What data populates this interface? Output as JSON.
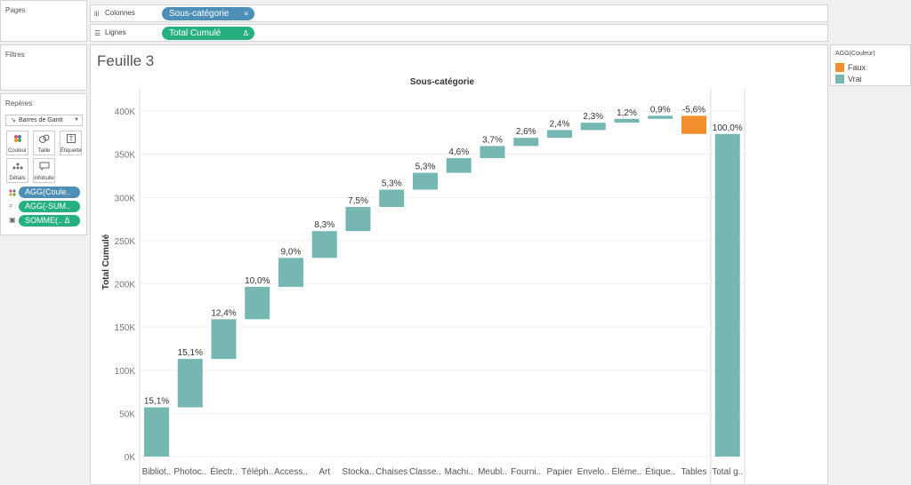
{
  "sidebar": {
    "pages_title": "Pages",
    "filters_title": "Filtres",
    "marks": {
      "title": "Repères",
      "mark_type": "Barres de Gantt",
      "buttons": [
        {
          "label": "Couleur",
          "icon": "color-icon"
        },
        {
          "label": "Taille",
          "icon": "size-icon"
        },
        {
          "label": "Étiquette",
          "icon": "label-icon"
        },
        {
          "label": "Détails",
          "icon": "details-icon"
        },
        {
          "label": "Infobulle",
          "icon": "tooltip-icon"
        }
      ],
      "pills": [
        {
          "text": "AGG(Coule..",
          "color": "#4e8fb7"
        },
        {
          "text": "AGG(-SUM..",
          "color": "#26b07f"
        },
        {
          "text": "SOMME(..  Δ",
          "color": "#26b07f"
        }
      ]
    }
  },
  "shelves": {
    "columns": {
      "label": "Colonnes",
      "pill": "Sous-catégorie",
      "pill_icon": "≡"
    },
    "rows": {
      "label": "Lignes",
      "pill": "Total Cumulé",
      "pill_icon": "Δ"
    }
  },
  "sheet": {
    "title": "Feuille 3"
  },
  "legend": {
    "title": "AGG(Couleur)",
    "items": [
      {
        "label": "Faux",
        "color": "#f28e2b"
      },
      {
        "label": "Vrai",
        "color": "#76b7b2"
      }
    ]
  },
  "chart_data": {
    "type": "waterfall",
    "title": "Sous-catégorie",
    "xlabel": "",
    "ylabel": "Total Cumulé",
    "ylim": [
      0,
      420000
    ],
    "yticks": [
      0,
      50000,
      100000,
      150000,
      200000,
      250000,
      300000,
      350000,
      400000
    ],
    "ytick_labels": [
      "0K",
      "50K",
      "100K",
      "150K",
      "200K",
      "250K",
      "300K",
      "350K",
      "400K"
    ],
    "grid": true,
    "categories": [
      "Bibliot..",
      "Photoc..",
      "Électr..",
      "Téléph..",
      "Access..",
      "Art",
      "Stocka..",
      "Chaises",
      "Classe..",
      "Machi..",
      "Meubl..",
      "Fourni..",
      "Papier",
      "Envelo..",
      "Éléme..",
      "Étique..",
      "Tables",
      "Total g.."
    ],
    "bars": [
      {
        "start": 0,
        "end": 57000,
        "label": "15,1%",
        "positive": true
      },
      {
        "start": 57000,
        "end": 113000,
        "label": "15,1%",
        "positive": true
      },
      {
        "start": 113000,
        "end": 159000,
        "label": "12,4%",
        "positive": true
      },
      {
        "start": 159000,
        "end": 196500,
        "label": "10,0%",
        "positive": true
      },
      {
        "start": 196500,
        "end": 230000,
        "label": "9,0%",
        "positive": true
      },
      {
        "start": 230000,
        "end": 261000,
        "label": "8,3%",
        "positive": true
      },
      {
        "start": 261000,
        "end": 289000,
        "label": "7,5%",
        "positive": true
      },
      {
        "start": 289000,
        "end": 309000,
        "label": "5,3%",
        "positive": true
      },
      {
        "start": 309000,
        "end": 328500,
        "label": "5,3%",
        "positive": true
      },
      {
        "start": 328500,
        "end": 345500,
        "label": "4,6%",
        "positive": true
      },
      {
        "start": 345500,
        "end": 359500,
        "label": "3,7%",
        "positive": true
      },
      {
        "start": 359500,
        "end": 369000,
        "label": "2,6%",
        "positive": true
      },
      {
        "start": 369000,
        "end": 378000,
        "label": "2,4%",
        "positive": true
      },
      {
        "start": 378000,
        "end": 386500,
        "label": "2,3%",
        "positive": true
      },
      {
        "start": 386500,
        "end": 391000,
        "label": "1,2%",
        "positive": true
      },
      {
        "start": 391000,
        "end": 394500,
        "label": "0,9%",
        "positive": true
      },
      {
        "start": 394500,
        "end": 373500,
        "label": "-5,6%",
        "positive": false
      },
      {
        "start": 0,
        "end": 373500,
        "label": "100,0%",
        "positive": true
      }
    ],
    "colors": {
      "positive": "#76b7b2",
      "negative": "#f28e2b"
    }
  }
}
